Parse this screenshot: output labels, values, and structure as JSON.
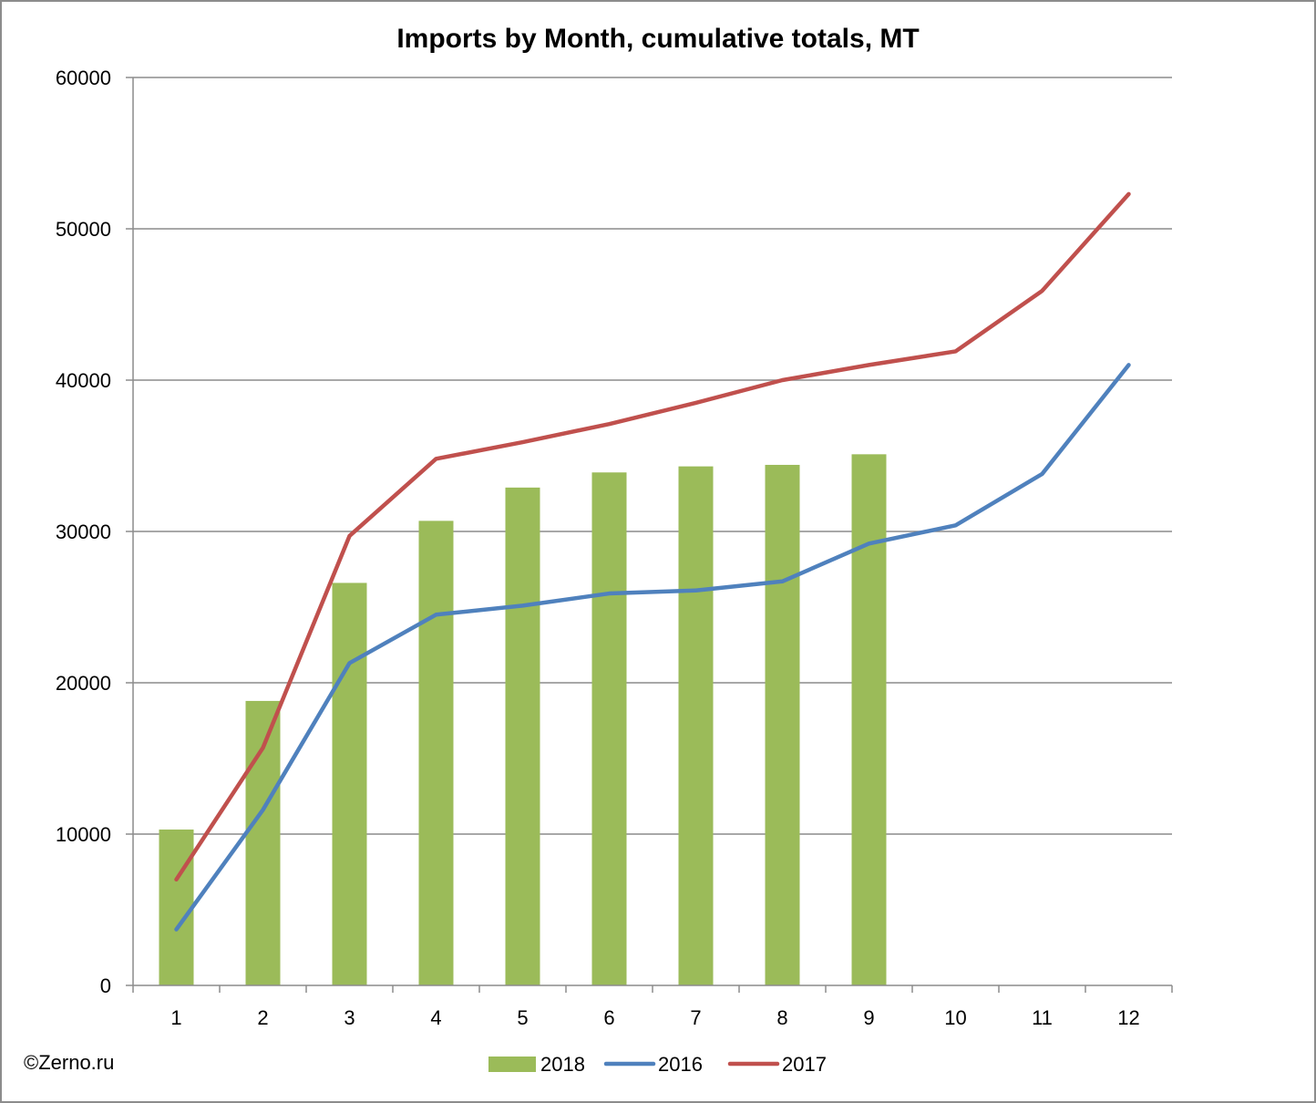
{
  "chart_data": {
    "type": "bar",
    "title": "Imports by Month, cumulative totals, MT",
    "xlabel": "",
    "ylabel": "",
    "categories": [
      "1",
      "2",
      "3",
      "4",
      "5",
      "6",
      "7",
      "8",
      "9",
      "10",
      "11",
      "12"
    ],
    "ylim": [
      0,
      60000
    ],
    "yticks": [
      "0",
      "10000",
      "20000",
      "30000",
      "40000",
      "50000",
      "60000"
    ],
    "grid": true,
    "legend_position": "bottom",
    "series": [
      {
        "name": "2018",
        "kind": "bar",
        "color": "#9bbb59",
        "values": [
          10300,
          18800,
          26600,
          30700,
          32900,
          33900,
          34300,
          34400,
          35100,
          null,
          null,
          null
        ]
      },
      {
        "name": "2016",
        "kind": "line",
        "color": "#4f81bd",
        "values": [
          3700,
          11600,
          21300,
          24500,
          25100,
          25900,
          26100,
          26700,
          29200,
          30400,
          33800,
          41000
        ]
      },
      {
        "name": "2017",
        "kind": "line",
        "color": "#c0504d",
        "values": [
          7000,
          15700,
          29700,
          34800,
          35900,
          37100,
          38500,
          40000,
          41000,
          41900,
          45900,
          52300
        ]
      }
    ]
  },
  "source": "©Zerno.ru"
}
